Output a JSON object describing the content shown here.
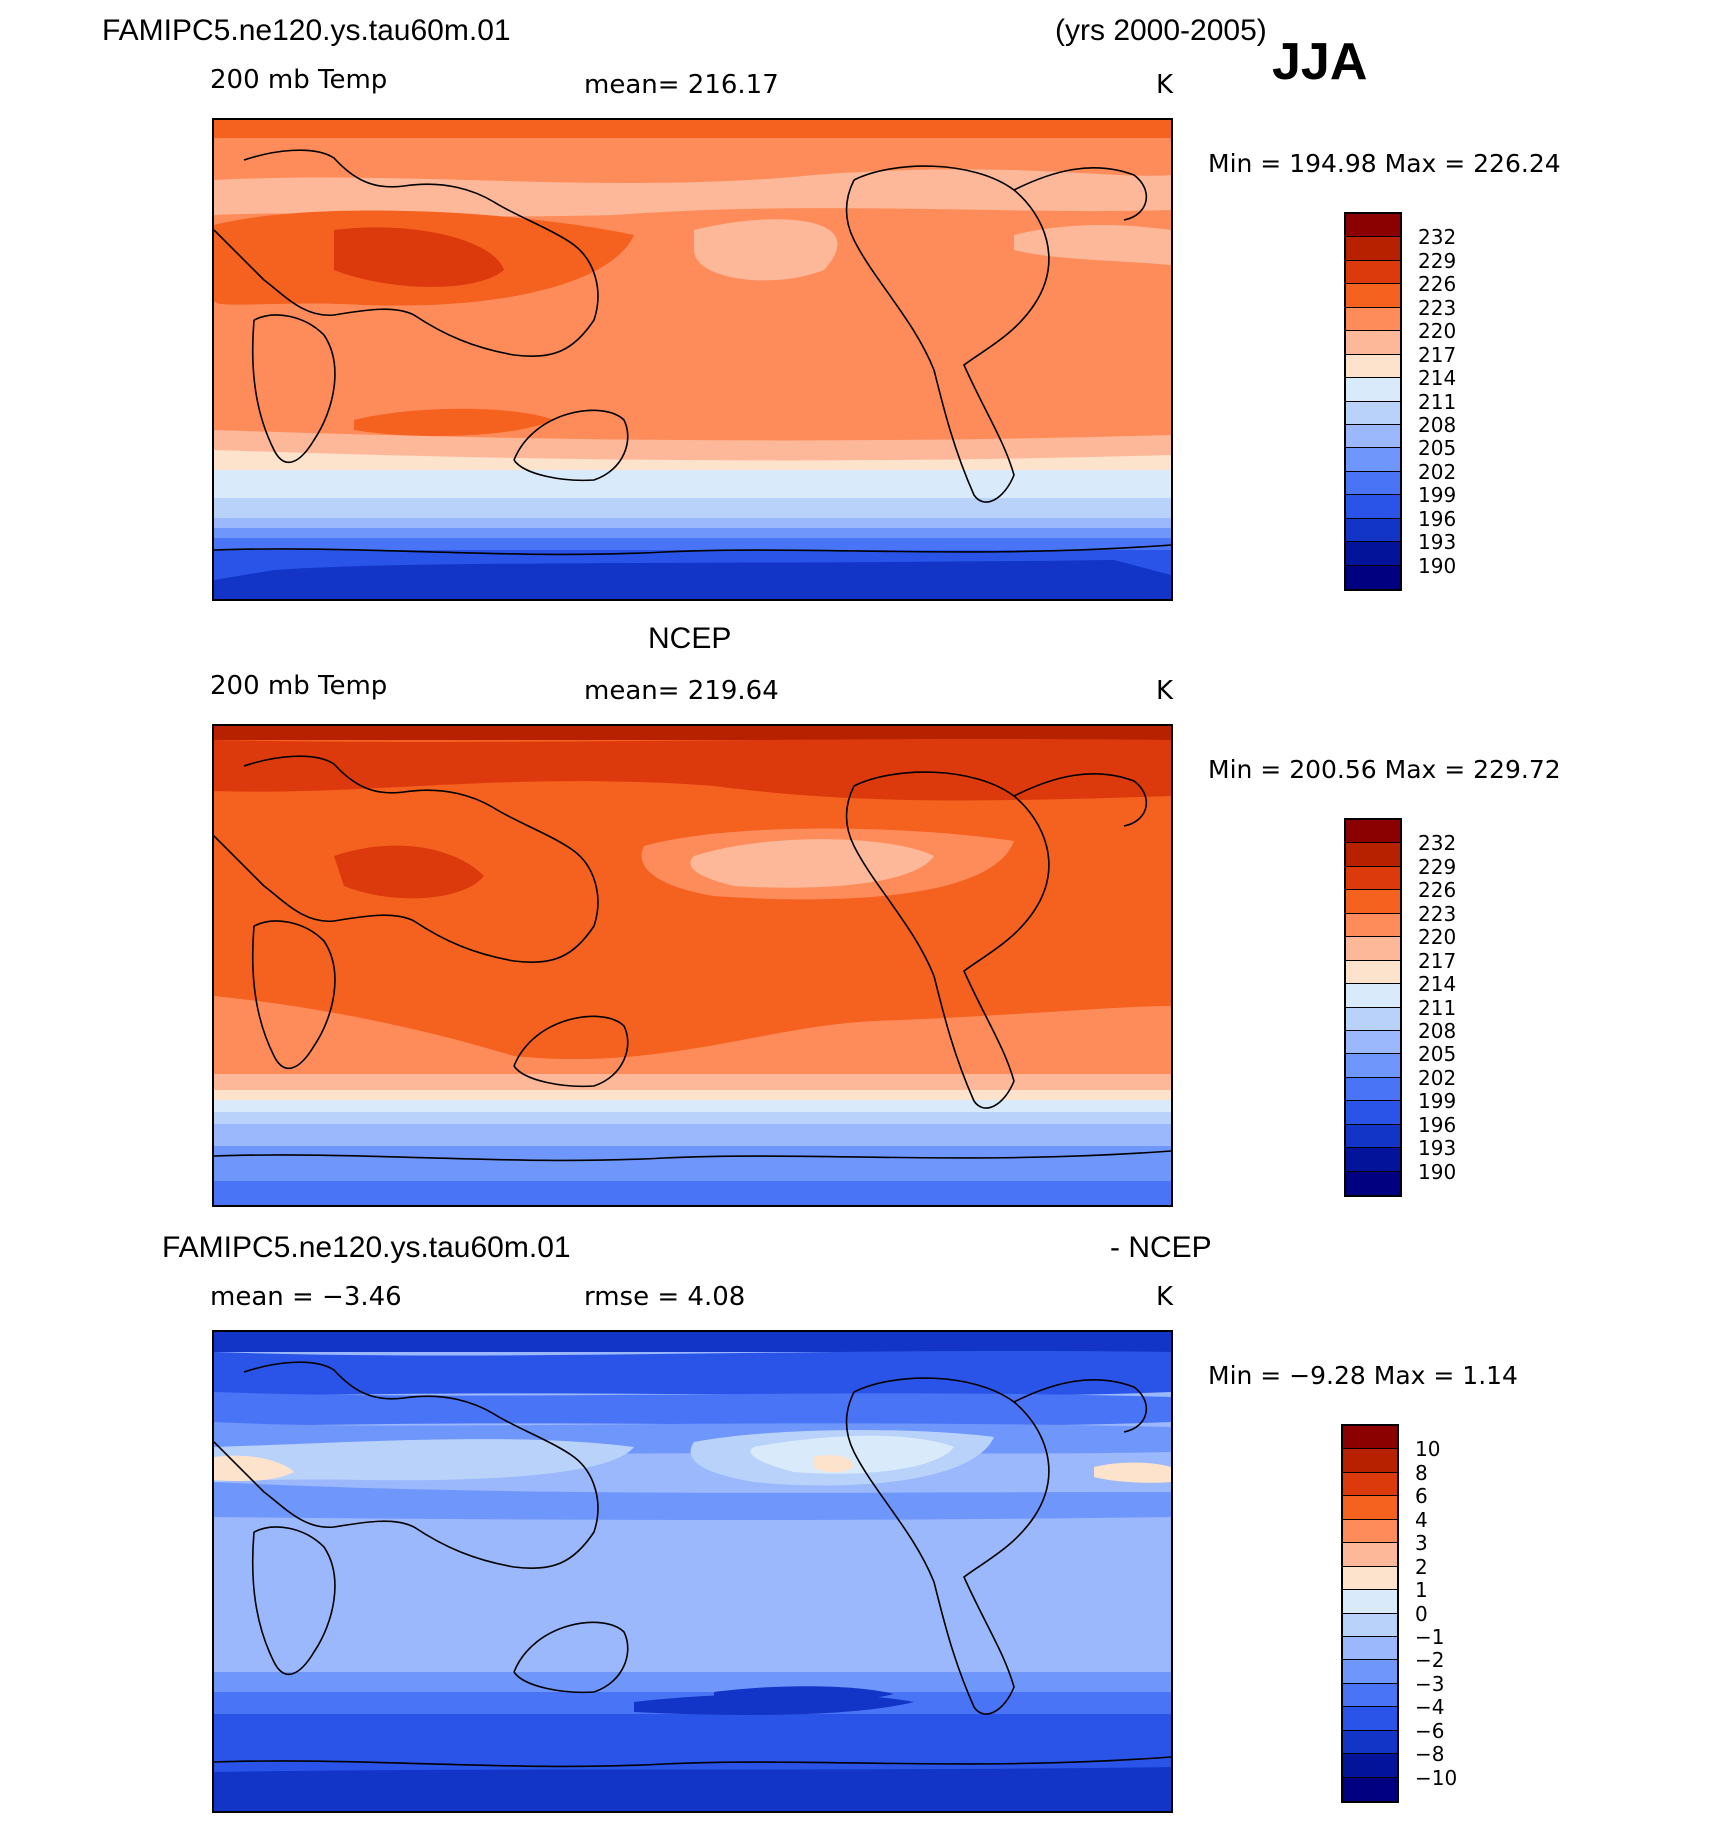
{
  "header": {
    "case_name": "FAMIPC5.ne120.ys.tau60m.01",
    "years": "(yrs 2000-2005)",
    "season": "JJA"
  },
  "panels": [
    {
      "title": "",
      "field": "200 mb Temp",
      "stat_left": "mean=  216.17",
      "stat_mid": "",
      "units": "K",
      "minmax": "Min  =  194.98  Max  =  226.24",
      "min": 194.98,
      "max": 226.24,
      "colorbar": {
        "levels": [
          "232",
          "229",
          "226",
          "223",
          "220",
          "217",
          "214",
          "211",
          "208",
          "205",
          "202",
          "199",
          "196",
          "193",
          "190"
        ],
        "colors": [
          "#8b0000",
          "#b82100",
          "#dc3a0d",
          "#f5611f",
          "#fd8c5a",
          "#fdb899",
          "#fde2cc",
          "#d9ebfa",
          "#b8d2fa",
          "#9ab8fb",
          "#6f96fb",
          "#4a74f6",
          "#2a54e8",
          "#1235c8",
          "#04149a",
          "#000080"
        ]
      }
    },
    {
      "title": "NCEP",
      "field": "200 mb Temp",
      "stat_left": "mean=  219.64",
      "stat_mid": "",
      "units": "K",
      "minmax": "Min  =  200.56  Max  =  229.72",
      "min": 200.56,
      "max": 229.72,
      "colorbar": {
        "levels": [
          "232",
          "229",
          "226",
          "223",
          "220",
          "217",
          "214",
          "211",
          "208",
          "205",
          "202",
          "199",
          "196",
          "193",
          "190"
        ],
        "colors": [
          "#8b0000",
          "#b82100",
          "#dc3a0d",
          "#f5611f",
          "#fd8c5a",
          "#fdb899",
          "#fde2cc",
          "#d9ebfa",
          "#b8d2fa",
          "#9ab8fb",
          "#6f96fb",
          "#4a74f6",
          "#2a54e8",
          "#1235c8",
          "#04149a",
          "#000080"
        ]
      }
    },
    {
      "title": "FAMIPC5.ne120.ys.tau60m.01",
      "title_right": "- NCEP",
      "field": "",
      "stat_left": "mean  =    −3.46",
      "stat_mid": "rmse  =     4.08",
      "units": "K",
      "minmax": "Min  =    −9.28  Max  =      1.14",
      "min": -9.28,
      "max": 1.14,
      "colorbar": {
        "levels": [
          "10",
          "8",
          "6",
          "4",
          "3",
          "2",
          "1",
          "0",
          "−1",
          "−2",
          "−3",
          "−4",
          "−6",
          "−8",
          "−10"
        ],
        "colors": [
          "#8b0000",
          "#b82100",
          "#dc3a0d",
          "#f5611f",
          "#fd8c5a",
          "#fdb899",
          "#fde2cc",
          "#d9ebfa",
          "#b8d2fa",
          "#9ab8fb",
          "#6f96fb",
          "#4a74f6",
          "#2a54e8",
          "#1235c8",
          "#04149a",
          "#000080"
        ]
      }
    }
  ]
}
